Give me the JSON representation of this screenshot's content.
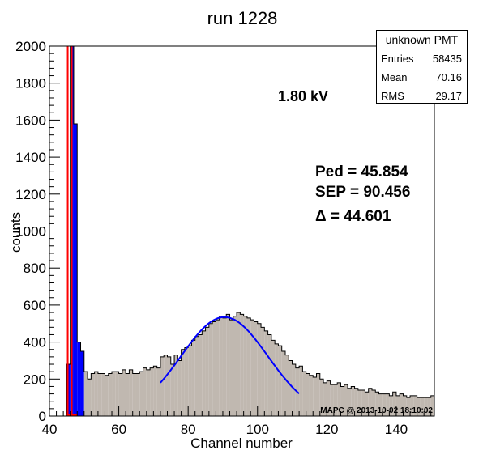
{
  "chart_data": {
    "type": "bar",
    "title": "run 1228",
    "xlabel": "Channel number",
    "ylabel": "counts",
    "xlim": [
      40,
      151
    ],
    "ylim": [
      0,
      2000
    ],
    "x_ticks": [
      40,
      60,
      80,
      100,
      120,
      140
    ],
    "y_ticks": [
      0,
      200,
      400,
      600,
      800,
      1000,
      1200,
      1400,
      1600,
      1800,
      2000
    ],
    "grid": false,
    "colors": {
      "histogram_fill": "#c0b8b0",
      "histogram_line": "#000000",
      "pedestal_fill": "#0000ff",
      "fit_line": "#0000ff",
      "pedestal_marker": "#ff0000"
    },
    "bin_start": 40,
    "bin_width": 1,
    "series": [
      {
        "kind": "histogram",
        "values": [
          0,
          0,
          0,
          0,
          0,
          280,
          2000,
          1580,
          400,
          350,
          240,
          200,
          230,
          240,
          230,
          230,
          220,
          230,
          240,
          240,
          230,
          250,
          230,
          250,
          230,
          230,
          240,
          260,
          250,
          260,
          270,
          260,
          320,
          330,
          320,
          280,
          330,
          300,
          360,
          370,
          380,
          410,
          430,
          440,
          460,
          480,
          500,
          510,
          520,
          540,
          530,
          550,
          520,
          540,
          560,
          550,
          540,
          530,
          520,
          510,
          500,
          480,
          460,
          440,
          410,
          390,
          380,
          350,
          330,
          300,
          280,
          260,
          270,
          240,
          230,
          220,
          210,
          230,
          200,
          180,
          190,
          170,
          170,
          180,
          160,
          170,
          150,
          160,
          150,
          140,
          140,
          130,
          150,
          140,
          130,
          120,
          120,
          120,
          110,
          130,
          110,
          120,
          110,
          100,
          110,
          110,
          100,
          100,
          100,
          100,
          110
        ]
      },
      {
        "kind": "gaussian-fit",
        "mean": 90.456,
        "amplitude": 535,
        "sigma": 12.5,
        "range": [
          72,
          112
        ]
      }
    ],
    "pedestal_peak": 45.854,
    "annotations": {
      "voltage": "1.80 kV",
      "ped": "Ped = 45.854",
      "sep": "SEP = 90.456",
      "delta": "Δ = 44.601",
      "footer": "MAPC @ 2013-10-02 18:10:02"
    },
    "stats": {
      "title": "unknown PMT",
      "rows": [
        {
          "label": "Entries",
          "value": "58435"
        },
        {
          "label": "Mean",
          "value": "70.16"
        },
        {
          "label": "RMS",
          "value": "29.17"
        }
      ]
    }
  }
}
